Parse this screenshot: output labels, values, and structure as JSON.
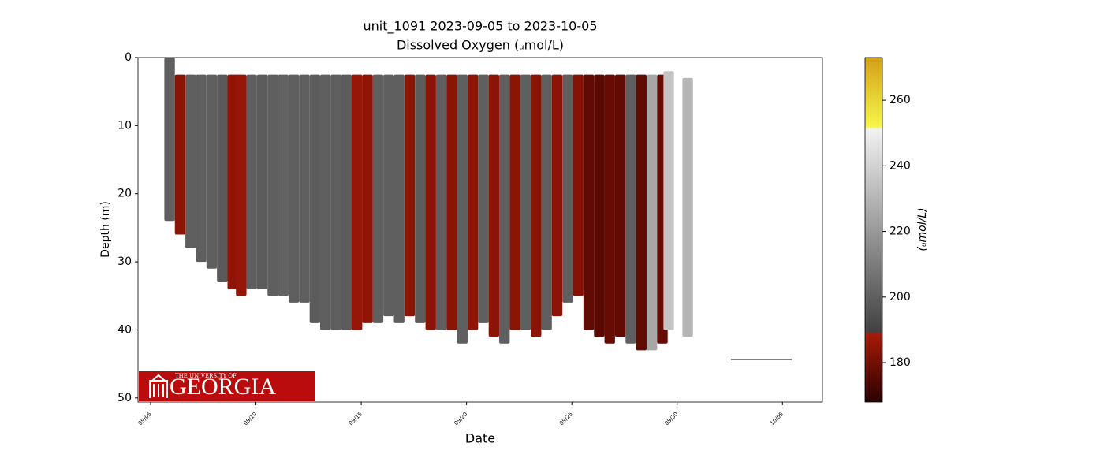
{
  "chart_data": {
    "type": "profiles",
    "title": "unit_1091 2023-09-05 to 2023-10-05",
    "subtitle": "Dissolved Oxygen (ᵤmol/L)",
    "xlabel": "Date",
    "ylabel": "Depth (m)",
    "xlim": [
      -0.6,
      31.9
    ],
    "xticks": [
      {
        "value": 0,
        "label": "09/05"
      },
      {
        "value": 5,
        "label": "09/10"
      },
      {
        "value": 10,
        "label": "09/15"
      },
      {
        "value": 15,
        "label": "09/20"
      },
      {
        "value": 20,
        "label": "09/25"
      },
      {
        "value": 25,
        "label": "09/30"
      },
      {
        "value": 30,
        "label": "10/05"
      }
    ],
    "ylim": [
      0,
      50.6
    ],
    "invert_y": true,
    "yticks": [
      0,
      10,
      20,
      30,
      40,
      50
    ],
    "x": [
      0.9,
      1.4,
      1.9,
      2.4,
      2.9,
      3.4,
      3.9,
      4.3,
      4.8,
      5.3,
      5.8,
      6.3,
      6.8,
      7.3,
      7.8,
      8.3,
      8.8,
      9.3,
      9.8,
      10.3,
      10.8,
      11.3,
      11.8,
      12.3,
      12.8,
      13.3,
      13.8,
      14.3,
      14.8,
      15.3,
      15.8,
      16.3,
      16.8,
      17.3,
      17.8,
      18.3,
      18.8,
      19.3,
      19.8,
      20.3,
      20.8,
      21.3,
      21.8,
      22.3,
      22.8,
      23.3,
      23.8,
      24.3,
      24.6,
      25.5
    ],
    "top": [
      0,
      2.5,
      2.5,
      2.5,
      2.5,
      2.5,
      2.5,
      2.5,
      2.5,
      2.5,
      2.5,
      2.5,
      2.5,
      2.5,
      2.5,
      2.5,
      2.5,
      2.5,
      2.5,
      2.5,
      2.5,
      2.5,
      2.5,
      2.5,
      2.5,
      2.5,
      2.5,
      2.5,
      2.5,
      2.5,
      2.5,
      2.5,
      2.5,
      2.5,
      2.5,
      2.5,
      2.5,
      2.5,
      2.5,
      2.5,
      2.5,
      2.5,
      2.5,
      2.5,
      2.5,
      2.5,
      2.5,
      2.5,
      2,
      3
    ],
    "bottom": [
      24,
      26,
      28,
      30,
      31,
      33,
      34,
      35,
      34,
      34,
      35,
      35,
      36,
      36,
      39,
      40,
      40,
      40,
      40,
      39,
      39,
      38,
      39,
      38,
      39,
      40,
      40,
      40,
      42,
      40,
      39,
      41,
      42,
      40,
      40,
      41,
      40,
      38,
      36,
      35,
      40,
      41,
      42,
      41,
      42,
      43,
      43,
      42,
      40,
      41
    ],
    "values": [
      200,
      184,
      200,
      200,
      200,
      198,
      185,
      186,
      200,
      199,
      200,
      201,
      200,
      200,
      199,
      200,
      200,
      199,
      186,
      185,
      200,
      200,
      200,
      184,
      199,
      184,
      200,
      184,
      200,
      185,
      200,
      184,
      200,
      184,
      200,
      184,
      200,
      184,
      200,
      183,
      177,
      176,
      178,
      177,
      200,
      177,
      225,
      178,
      235,
      230
    ],
    "colorbar": {
      "label": "(ᵤmol/L)",
      "lim": [
        168,
        273
      ],
      "ticks": [
        180,
        200,
        220,
        240,
        260
      ],
      "stops": [
        {
          "value": 168,
          "color": "#2a0000"
        },
        {
          "value": 189,
          "color": "#a81a08"
        },
        {
          "value": 189.1,
          "color": "#404040"
        },
        {
          "value": 251,
          "color": "#f2f2f2"
        },
        {
          "value": 252,
          "color": "#f6f64a"
        },
        {
          "value": 273,
          "color": "#d4a017"
        }
      ]
    }
  },
  "logo": {
    "top": "THE UNIVERSITY OF",
    "name": "GEORGIA"
  }
}
